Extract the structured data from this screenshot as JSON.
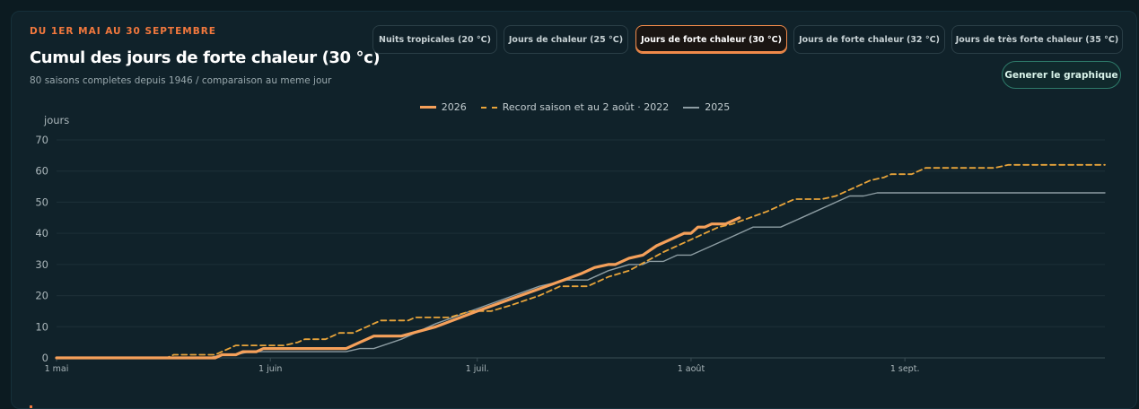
{
  "header": {
    "eyebrow": "DU 1ER MAI AU 30 SEPTEMBRE",
    "title": "Cumul des jours de forte chaleur (30 °c)",
    "subtitle": "80 saisons completes depuis 1946 / comparaison au meme jour"
  },
  "tabs": [
    {
      "label": "Nuits tropicales (20 °C)",
      "active": false
    },
    {
      "label": "Jours de chaleur (25 °C)",
      "active": false
    },
    {
      "label": "Jours de forte chaleur (30 °C)",
      "active": true
    },
    {
      "label": "Jours de forte chaleur (32 °C)",
      "active": false
    },
    {
      "label": "Jours de très forte chaleur (35 °C)",
      "active": false
    }
  ],
  "generate_button": "Generer le graphique",
  "colors": {
    "accent": "#f2783d",
    "series_2026": "#f5a05a",
    "series_record": "#e8a43a",
    "series_2025": "#8d9da3",
    "grid": "#1d3038"
  },
  "chart_data": {
    "type": "line",
    "ylabel": "jours",
    "ylim": [
      0,
      70
    ],
    "yticks": [
      0,
      10,
      20,
      30,
      40,
      50,
      60,
      70
    ],
    "xlim": [
      "2025-05-01",
      "2025-09-30"
    ],
    "xticks": [
      {
        "label": "1 mai",
        "x": "05-01"
      },
      {
        "label": "1 juin",
        "x": "06-01"
      },
      {
        "label": "1 juil.",
        "x": "07-01"
      },
      {
        "label": "1 août",
        "x": "08-01"
      },
      {
        "label": "1 sept.",
        "x": "09-01"
      }
    ],
    "grid": true,
    "legend_position": "top-center",
    "series": [
      {
        "name": "2026",
        "style": "solid-thick",
        "points": [
          [
            "05-01",
            0
          ],
          [
            "05-24",
            0
          ],
          [
            "05-25",
            1
          ],
          [
            "05-27",
            1
          ],
          [
            "05-28",
            2
          ],
          [
            "05-30",
            2
          ],
          [
            "05-31",
            3
          ],
          [
            "06-10",
            3
          ],
          [
            "06-11",
            3
          ],
          [
            "06-12",
            3
          ],
          [
            "06-14",
            5
          ],
          [
            "06-16",
            7
          ],
          [
            "06-20",
            7
          ],
          [
            "06-25",
            10
          ],
          [
            "07-01",
            15
          ],
          [
            "07-06",
            19
          ],
          [
            "07-11",
            23
          ],
          [
            "07-16",
            27
          ],
          [
            "07-18",
            29
          ],
          [
            "07-20",
            30
          ],
          [
            "07-21",
            30
          ],
          [
            "07-23",
            32
          ],
          [
            "07-25",
            33
          ],
          [
            "07-27",
            36
          ],
          [
            "07-29",
            38
          ],
          [
            "07-31",
            40
          ],
          [
            "08-01",
            40
          ],
          [
            "08-02",
            42
          ],
          [
            "08-03",
            42
          ],
          [
            "08-04",
            43
          ],
          [
            "08-06",
            43
          ],
          [
            "08-08",
            45
          ]
        ]
      },
      {
        "name": "Record saison et au 2 août · 2022",
        "style": "dashed",
        "points": [
          [
            "05-01",
            0
          ],
          [
            "05-17",
            0
          ],
          [
            "05-18",
            1
          ],
          [
            "05-24",
            1
          ],
          [
            "05-27",
            4
          ],
          [
            "06-03",
            4
          ],
          [
            "06-05",
            5
          ],
          [
            "06-06",
            6
          ],
          [
            "06-09",
            6
          ],
          [
            "06-11",
            8
          ],
          [
            "06-13",
            8
          ],
          [
            "06-15",
            10
          ],
          [
            "06-17",
            12
          ],
          [
            "06-21",
            12
          ],
          [
            "06-22",
            13
          ],
          [
            "06-27",
            13
          ],
          [
            "06-30",
            15
          ],
          [
            "07-03",
            15
          ],
          [
            "07-06",
            17
          ],
          [
            "07-10",
            20
          ],
          [
            "07-13",
            23
          ],
          [
            "07-17",
            23
          ],
          [
            "07-20",
            26
          ],
          [
            "07-23",
            28
          ],
          [
            "07-28",
            34
          ],
          [
            "07-31",
            37
          ],
          [
            "08-03",
            40
          ],
          [
            "08-05",
            42
          ],
          [
            "08-07",
            43
          ],
          [
            "08-12",
            47
          ],
          [
            "08-16",
            51
          ],
          [
            "08-19",
            51
          ],
          [
            "08-20",
            51
          ],
          [
            "08-22",
            52
          ],
          [
            "08-25",
            55
          ],
          [
            "08-27",
            57
          ],
          [
            "08-29",
            58
          ],
          [
            "08-30",
            59
          ],
          [
            "09-02",
            59
          ],
          [
            "09-04",
            61
          ],
          [
            "09-14",
            61
          ],
          [
            "09-16",
            62
          ],
          [
            "09-30",
            62
          ]
        ]
      },
      {
        "name": "2025",
        "style": "solid-thin",
        "points": [
          [
            "05-01",
            0
          ],
          [
            "05-23",
            0
          ],
          [
            "05-25",
            1
          ],
          [
            "05-27",
            1
          ],
          [
            "05-29",
            2
          ],
          [
            "06-12",
            2
          ],
          [
            "06-14",
            3
          ],
          [
            "06-16",
            3
          ],
          [
            "06-20",
            6
          ],
          [
            "06-25",
            11
          ],
          [
            "06-30",
            15
          ],
          [
            "07-05",
            19
          ],
          [
            "07-10",
            23
          ],
          [
            "07-12",
            24
          ],
          [
            "07-14",
            25
          ],
          [
            "07-17",
            25
          ],
          [
            "07-20",
            28
          ],
          [
            "07-23",
            30
          ],
          [
            "07-25",
            30
          ],
          [
            "07-26",
            31
          ],
          [
            "07-28",
            31
          ],
          [
            "07-30",
            33
          ],
          [
            "08-01",
            33
          ],
          [
            "08-05",
            37
          ],
          [
            "08-10",
            42
          ],
          [
            "08-12",
            42
          ],
          [
            "08-14",
            42
          ],
          [
            "08-17",
            45
          ],
          [
            "08-24",
            52
          ],
          [
            "08-26",
            52
          ],
          [
            "08-28",
            53
          ],
          [
            "09-30",
            53
          ]
        ]
      }
    ]
  }
}
